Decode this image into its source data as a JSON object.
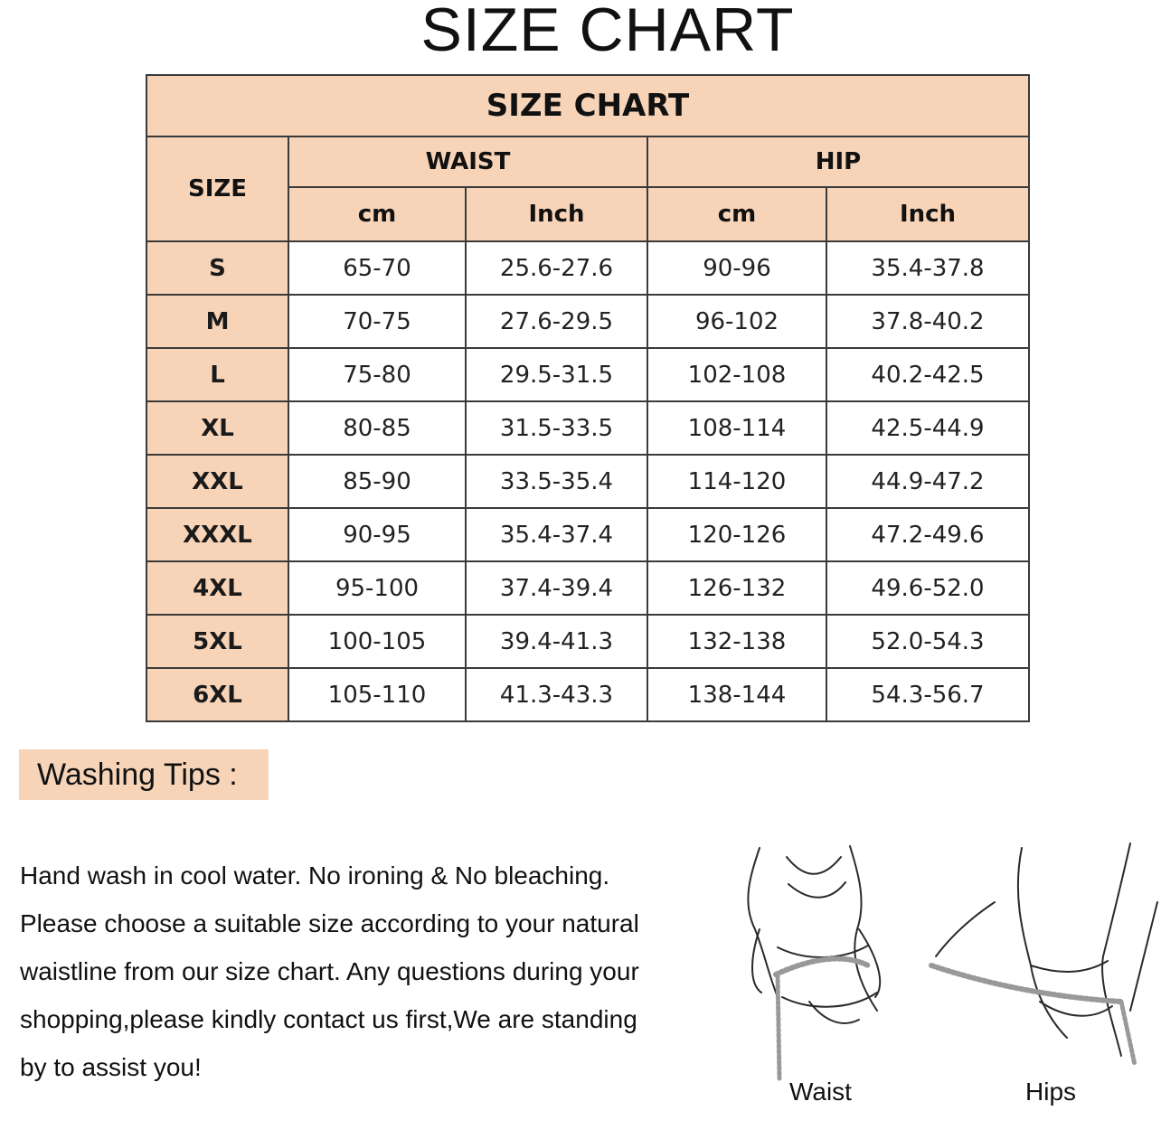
{
  "page_title": "SIZE CHART",
  "table": {
    "title": "SIZE CHART",
    "size_header": "SIZE",
    "groups": [
      {
        "label": "WAIST",
        "units": [
          "cm",
          "Inch"
        ]
      },
      {
        "label": "HIP",
        "units": [
          "cm",
          "Inch"
        ]
      }
    ],
    "rows": [
      {
        "size": "S",
        "waist_cm": "65-70",
        "waist_in": "25.6-27.6",
        "hip_cm": "90-96",
        "hip_in": "35.4-37.8"
      },
      {
        "size": "M",
        "waist_cm": "70-75",
        "waist_in": "27.6-29.5",
        "hip_cm": "96-102",
        "hip_in": "37.8-40.2"
      },
      {
        "size": "L",
        "waist_cm": "75-80",
        "waist_in": "29.5-31.5",
        "hip_cm": "102-108",
        "hip_in": "40.2-42.5"
      },
      {
        "size": "XL",
        "waist_cm": "80-85",
        "waist_in": "31.5-33.5",
        "hip_cm": "108-114",
        "hip_in": "42.5-44.9"
      },
      {
        "size": "XXL",
        "waist_cm": "85-90",
        "waist_in": "33.5-35.4",
        "hip_cm": "114-120",
        "hip_in": "44.9-47.2"
      },
      {
        "size": "XXXL",
        "waist_cm": "90-95",
        "waist_in": "35.4-37.4",
        "hip_cm": "120-126",
        "hip_in": "47.2-49.6"
      },
      {
        "size": "4XL",
        "waist_cm": "95-100",
        "waist_in": "37.4-39.4",
        "hip_cm": "126-132",
        "hip_in": "49.6-52.0"
      },
      {
        "size": "5XL",
        "waist_cm": "100-105",
        "waist_in": "39.4-41.3",
        "hip_cm": "132-138",
        "hip_in": "52.0-54.3"
      },
      {
        "size": "6XL",
        "waist_cm": "105-110",
        "waist_in": "41.3-43.3",
        "hip_cm": "138-144",
        "hip_in": "54.3-56.7"
      }
    ]
  },
  "washing_tips": {
    "label": "Washing Tips :",
    "lines": [
      "Hand wash in cool water. No ironing & No bleaching.",
      "Please choose a suitable size according to your natural",
      "waistline from our size chart. Any questions during your",
      "shopping,please kindly contact us first,We are standing",
      "by to assist you!"
    ]
  },
  "illustration": {
    "waist_label": "Waist",
    "hips_label": "Hips"
  },
  "colors": {
    "header_bg": "#f7d4b8",
    "border": "#3a3a3a"
  }
}
